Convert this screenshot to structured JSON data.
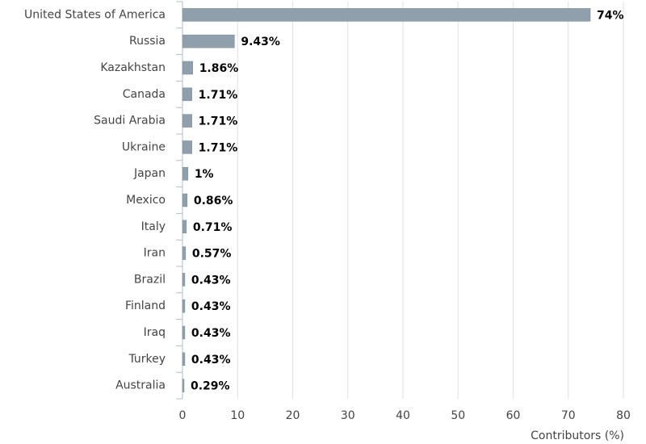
{
  "chart_data": {
    "type": "bar",
    "orientation": "horizontal",
    "categories": [
      "United States of America",
      "Russia",
      "Kazakhstan",
      "Canada",
      "Saudi Arabia",
      "Ukraine",
      "Japan",
      "Mexico",
      "Italy",
      "Iran",
      "Brazil",
      "Finland",
      "Iraq",
      "Turkey",
      "Australia"
    ],
    "values": [
      74,
      9.43,
      1.86,
      1.71,
      1.71,
      1.71,
      1,
      0.86,
      0.71,
      0.57,
      0.43,
      0.43,
      0.43,
      0.43,
      0.29
    ],
    "value_labels": [
      "74%",
      "9.43%",
      "1.86%",
      "1.71%",
      "1.71%",
      "1.71%",
      "1%",
      "0.86%",
      "0.71%",
      "0.57%",
      "0.43%",
      "0.43%",
      "0.43%",
      "0.43%",
      "0.29%"
    ],
    "color": "#8f9fab",
    "xlabel": "Contributors (%)",
    "xlim": [
      0,
      80
    ],
    "xticks": [
      0,
      10,
      20,
      30,
      40,
      50,
      60,
      70,
      80
    ],
    "grid": true
  }
}
